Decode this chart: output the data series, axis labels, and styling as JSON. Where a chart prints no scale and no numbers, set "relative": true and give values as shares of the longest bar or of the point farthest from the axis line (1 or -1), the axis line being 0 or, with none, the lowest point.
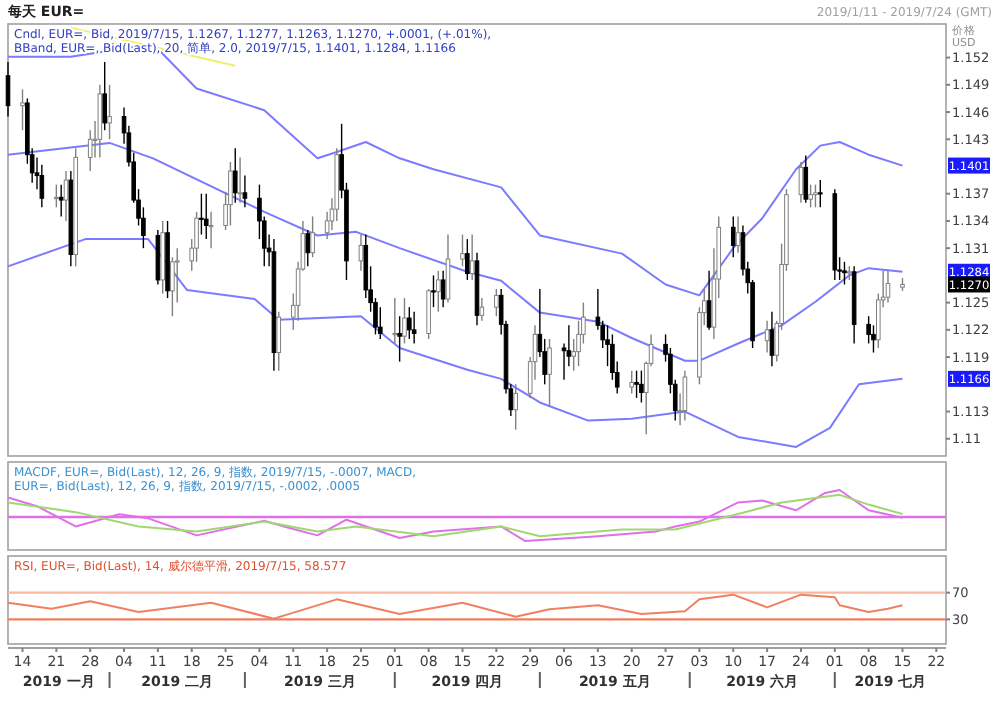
{
  "chart_data": [
    {
      "type": "candlestick",
      "title": "每天 EUR=",
      "subtitle": "Cndl, EUR=, Bid, 2019/7/15, 1.1267, 1.1277, 1.1263, 1.1270, +.0001, (+.01%), BBand, EUR=, Bid(Last), 20, 简单, 2.0, 2019/7/15, 1.1401, 1.1284, 1.1166",
      "ylabel": "价格 USD",
      "colors": [
        "#000000",
        "#ffffff",
        "#000000",
        "#000000",
        "#000000",
        "#000000",
        "#ffffff",
        "#000000",
        "#ffffff",
        "#000000",
        "#ffffff",
        "#ffffff",
        "#ffffff",
        "#ffffff",
        "#000000",
        "#ffffff",
        "#000000",
        "#000000",
        "#000000",
        "#000000",
        "#000000",
        "#000000",
        "#ffffff",
        "#000000",
        "#ffffff",
        "#ffffff",
        "#ffffff",
        "#ffffff",
        "#000000",
        "#000000",
        "#ffffff",
        "#ffffff",
        "#ffffff",
        "#000000",
        "#ffffff",
        "#000000",
        "#000000",
        "#000000",
        "#000000",
        "#000000",
        "#ffffff",
        "#ffffff",
        "#ffffff",
        "#ffffff",
        "#000000",
        "#ffffff",
        "#ffffff",
        "#ffffff",
        "#ffffff",
        "#000000",
        "#000000",
        "#ffffff",
        "#000000",
        "#000000",
        "#000000",
        "#000000",
        "#ffffff",
        "#000000",
        "#ffffff",
        "#000000",
        "#000000",
        "#ffffff",
        "#000000",
        "#ffffff",
        "#000000",
        "#ffffff",
        "#ffffff",
        "#000000",
        "#ffffff",
        "#000000",
        "#ffffff",
        "#ffffff",
        "#000000",
        "#000000",
        "#000000",
        "#ffffff",
        "#ffffff",
        "#ffffff",
        "#000000",
        "#000000",
        "#ffffff",
        "#000000",
        "#000000",
        "#ffffff",
        "#ffffff",
        "#ffffff",
        "#000000",
        "#000000",
        "#000000",
        "#000000",
        "#000000",
        "#ffffff",
        "#000000",
        "#000000",
        "#ffffff",
        "#ffffff",
        "#000000",
        "#000000",
        "#000000",
        "#ffffff",
        "#ffffff",
        "#ffffff",
        "#ffffff",
        "#000000",
        "#ffffff",
        "#ffffff",
        "#000000",
        "#ffffff",
        "#000000",
        "#000000",
        "#000000",
        "#ffffff",
        "#000000",
        "#ffffff",
        "#ffffff",
        "#ffffff",
        "#ffffff",
        "#000000",
        "#ffffff",
        "#ffffff",
        "#000000",
        "#000000",
        "#000000",
        "#000000",
        "#ffffff",
        "#000000",
        "#000000",
        "#000000",
        "#ffffff",
        "#ffffff",
        "#ffffff",
        "#ffffff"
      ],
      "x": [
        "2019-01-11",
        "2019-01-14",
        "2019-01-15",
        "2019-01-16",
        "2019-01-17",
        "2019-01-18",
        "2019-01-21",
        "2019-01-22",
        "2019-01-23",
        "2019-01-24",
        "2019-01-25",
        "2019-01-28",
        "2019-01-29",
        "2019-01-30",
        "2019-01-31",
        "2019-02-01",
        "2019-02-04",
        "2019-02-05",
        "2019-02-06",
        "2019-02-07",
        "2019-02-08",
        "2019-02-11",
        "2019-02-12",
        "2019-02-13",
        "2019-02-14",
        "2019-02-15",
        "2019-02-18",
        "2019-02-19",
        "2019-02-20",
        "2019-02-21",
        "2019-02-22",
        "2019-02-25",
        "2019-02-26",
        "2019-02-27",
        "2019-02-28",
        "2019-03-01",
        "2019-03-04",
        "2019-03-05",
        "2019-03-06",
        "2019-03-07",
        "2019-03-08",
        "2019-03-11",
        "2019-03-12",
        "2019-03-13",
        "2019-03-14",
        "2019-03-15",
        "2019-03-18",
        "2019-03-19",
        "2019-03-20",
        "2019-03-21",
        "2019-03-22",
        "2019-03-25",
        "2019-03-26",
        "2019-03-27",
        "2019-03-28",
        "2019-03-29",
        "2019-04-01",
        "2019-04-02",
        "2019-04-03",
        "2019-04-04",
        "2019-04-05",
        "2019-04-08",
        "2019-04-09",
        "2019-04-10",
        "2019-04-11",
        "2019-04-12",
        "2019-04-15",
        "2019-04-16",
        "2019-04-17",
        "2019-04-18",
        "2019-04-19",
        "2019-04-22",
        "2019-04-23",
        "2019-04-24",
        "2019-04-25",
        "2019-04-26",
        "2019-04-29",
        "2019-04-30",
        "2019-05-01",
        "2019-05-02",
        "2019-05-03",
        "2019-05-06",
        "2019-05-07",
        "2019-05-08",
        "2019-05-09",
        "2019-05-10",
        "2019-05-13",
        "2019-05-14",
        "2019-05-15",
        "2019-05-16",
        "2019-05-17",
        "2019-05-20",
        "2019-05-21",
        "2019-05-22",
        "2019-05-23",
        "2019-05-24",
        "2019-05-27",
        "2019-05-28",
        "2019-05-29",
        "2019-05-30",
        "2019-05-31",
        "2019-06-03",
        "2019-06-04",
        "2019-06-05",
        "2019-06-06",
        "2019-06-07",
        "2019-06-10",
        "2019-06-11",
        "2019-06-12",
        "2019-06-13",
        "2019-06-14",
        "2019-06-17",
        "2019-06-18",
        "2019-06-19",
        "2019-06-20",
        "2019-06-21",
        "2019-06-24",
        "2019-06-25",
        "2019-06-26",
        "2019-06-27",
        "2019-06-28",
        "2019-07-01",
        "2019-07-02",
        "2019-07-03",
        "2019-07-04",
        "2019-07-05",
        "2019-07-08",
        "2019-07-09",
        "2019-07-10",
        "2019-07-11",
        "2019-07-12",
        "2019-07-15"
      ],
      "ohlc": [
        [
          1.15,
          1.1515,
          1.1455,
          1.1467
        ],
        [
          1.1467,
          1.1485,
          1.144,
          1.147
        ],
        [
          1.147,
          1.1475,
          1.1403,
          1.1413
        ],
        [
          1.1413,
          1.142,
          1.1382,
          1.1393
        ],
        [
          1.1393,
          1.141,
          1.1375,
          1.139
        ],
        [
          1.139,
          1.1402,
          1.1355,
          1.1365
        ],
        [
          1.1365,
          1.138,
          1.1355,
          1.1366
        ],
        [
          1.1366,
          1.138,
          1.1345,
          1.1363
        ],
        [
          1.1363,
          1.1395,
          1.134,
          1.1385
        ],
        [
          1.1385,
          1.1395,
          1.129,
          1.1303
        ],
        [
          1.1303,
          1.142,
          1.129,
          1.141
        ],
        [
          1.141,
          1.144,
          1.1395,
          1.143
        ],
        [
          1.143,
          1.145,
          1.141,
          1.143
        ],
        [
          1.143,
          1.149,
          1.141,
          1.148
        ],
        [
          1.148,
          1.1515,
          1.144,
          1.1448
        ],
        [
          1.1448,
          1.149,
          1.143,
          1.1455
        ],
        [
          1.1455,
          1.1465,
          1.1425,
          1.1437
        ],
        [
          1.1437,
          1.1445,
          1.14,
          1.1405
        ],
        [
          1.1405,
          1.1415,
          1.136,
          1.1363
        ],
        [
          1.1363,
          1.1375,
          1.1335,
          1.1343
        ],
        [
          1.1343,
          1.1355,
          1.131,
          1.1324
        ],
        [
          1.1324,
          1.133,
          1.127,
          1.1275
        ],
        [
          1.1275,
          1.134,
          1.126,
          1.1327
        ],
        [
          1.1327,
          1.134,
          1.1255,
          1.1263
        ],
        [
          1.1263,
          1.13,
          1.1235,
          1.1295
        ],
        [
          1.1295,
          1.131,
          1.125,
          1.1296
        ],
        [
          1.1296,
          1.132,
          1.1285,
          1.131
        ],
        [
          1.131,
          1.135,
          1.1295,
          1.1343
        ],
        [
          1.1343,
          1.137,
          1.1325,
          1.1342
        ],
        [
          1.1342,
          1.137,
          1.132,
          1.1335
        ],
        [
          1.1335,
          1.135,
          1.131,
          1.1335
        ],
        [
          1.1335,
          1.1372,
          1.133,
          1.1358
        ],
        [
          1.1358,
          1.1405,
          1.1335,
          1.1395
        ],
        [
          1.1395,
          1.142,
          1.136,
          1.1371
        ],
        [
          1.1371,
          1.141,
          1.136,
          1.1371
        ],
        [
          1.1371,
          1.139,
          1.1355,
          1.1365
        ],
        [
          1.1365,
          1.138,
          1.132,
          1.134
        ],
        [
          1.134,
          1.1345,
          1.129,
          1.131
        ],
        [
          1.131,
          1.1325,
          1.129,
          1.1306
        ],
        [
          1.1306,
          1.132,
          1.1175,
          1.1195
        ],
        [
          1.1195,
          1.124,
          1.1175,
          1.1234
        ],
        [
          1.1234,
          1.126,
          1.122,
          1.1247
        ],
        [
          1.1247,
          1.1295,
          1.123,
          1.1287
        ],
        [
          1.1287,
          1.134,
          1.1285,
          1.1326
        ],
        [
          1.1326,
          1.133,
          1.129,
          1.1305
        ],
        [
          1.1305,
          1.1345,
          1.13,
          1.1327
        ],
        [
          1.1327,
          1.135,
          1.132,
          1.134
        ],
        [
          1.134,
          1.1365,
          1.133,
          1.1353
        ],
        [
          1.1353,
          1.142,
          1.134,
          1.1413
        ],
        [
          1.1413,
          1.1447,
          1.1365,
          1.1374
        ],
        [
          1.1374,
          1.1382,
          1.1275,
          1.1296
        ],
        [
          1.1296,
          1.1325,
          1.1285,
          1.1313
        ],
        [
          1.1313,
          1.1325,
          1.1255,
          1.1264
        ],
        [
          1.1264,
          1.129,
          1.124,
          1.125
        ],
        [
          1.125,
          1.1255,
          1.1215,
          1.1223
        ],
        [
          1.1223,
          1.1245,
          1.121,
          1.1216
        ],
        [
          1.1216,
          1.1255,
          1.1205,
          1.1216
        ],
        [
          1.1216,
          1.1235,
          1.1185,
          1.1213
        ],
        [
          1.1213,
          1.1255,
          1.1205,
          1.1233
        ],
        [
          1.1233,
          1.1245,
          1.121,
          1.122
        ],
        [
          1.122,
          1.124,
          1.1205,
          1.1216
        ],
        [
          1.1216,
          1.1265,
          1.121,
          1.1263
        ],
        [
          1.1263,
          1.128,
          1.1245,
          1.1262
        ],
        [
          1.1262,
          1.1285,
          1.124,
          1.1275
        ],
        [
          1.1275,
          1.1285,
          1.1245,
          1.1254
        ],
        [
          1.1254,
          1.1325,
          1.125,
          1.1298
        ],
        [
          1.1298,
          1.1325,
          1.129,
          1.1304
        ],
        [
          1.1304,
          1.132,
          1.1275,
          1.1282
        ],
        [
          1.1282,
          1.1325,
          1.1275,
          1.1296
        ],
        [
          1.1296,
          1.1305,
          1.1225,
          1.1236
        ],
        [
          1.1236,
          1.1255,
          1.123,
          1.1245
        ],
        [
          1.1245,
          1.1265,
          1.1235,
          1.1258
        ],
        [
          1.1258,
          1.1265,
          1.1215,
          1.1226
        ],
        [
          1.1226,
          1.123,
          1.115,
          1.1155
        ],
        [
          1.1155,
          1.116,
          1.1125,
          1.1132
        ],
        [
          1.1132,
          1.116,
          1.111,
          1.115
        ],
        [
          1.115,
          1.119,
          1.1145,
          1.1185
        ],
        [
          1.1185,
          1.1225,
          1.1165,
          1.1215
        ],
        [
          1.1215,
          1.1265,
          1.119,
          1.1196
        ],
        [
          1.1196,
          1.121,
          1.116,
          1.1171
        ],
        [
          1.1171,
          1.121,
          1.1135,
          1.12
        ],
        [
          1.12,
          1.1205,
          1.1165,
          1.1197
        ],
        [
          1.1197,
          1.1225,
          1.118,
          1.1191
        ],
        [
          1.1191,
          1.121,
          1.1175,
          1.1196
        ],
        [
          1.1196,
          1.123,
          1.118,
          1.1215
        ],
        [
          1.1215,
          1.125,
          1.1205,
          1.1234
        ],
        [
          1.1234,
          1.1265,
          1.122,
          1.1225
        ],
        [
          1.1225,
          1.123,
          1.12,
          1.1209
        ],
        [
          1.1209,
          1.1225,
          1.118,
          1.1204
        ],
        [
          1.1204,
          1.1215,
          1.1165,
          1.1173
        ],
        [
          1.1173,
          1.1185,
          1.115,
          1.1157
        ],
        [
          1.1157,
          1.1175,
          1.115,
          1.1162
        ],
        [
          1.1162,
          1.1175,
          1.1145,
          1.116
        ],
        [
          1.116,
          1.1175,
          1.114,
          1.1151
        ],
        [
          1.1151,
          1.1185,
          1.1105,
          1.1183
        ],
        [
          1.1183,
          1.1215,
          1.118,
          1.1204
        ],
        [
          1.1204,
          1.1215,
          1.1185,
          1.1193
        ],
        [
          1.1193,
          1.12,
          1.115,
          1.116
        ],
        [
          1.116,
          1.1165,
          1.112,
          1.1131
        ],
        [
          1.1131,
          1.115,
          1.1115,
          1.1131
        ],
        [
          1.1131,
          1.1175,
          1.112,
          1.1168
        ],
        [
          1.1168,
          1.1245,
          1.116,
          1.1239
        ],
        [
          1.1239,
          1.1265,
          1.1225,
          1.1252
        ],
        [
          1.1252,
          1.1285,
          1.122,
          1.1223
        ],
        [
          1.1223,
          1.131,
          1.121,
          1.1276
        ],
        [
          1.1276,
          1.1345,
          1.1255,
          1.1333
        ],
        [
          1.1333,
          1.1345,
          1.13,
          1.1313
        ],
        [
          1.1313,
          1.1345,
          1.1305,
          1.1327
        ],
        [
          1.1327,
          1.1335,
          1.128,
          1.1287
        ],
        [
          1.1287,
          1.1295,
          1.126,
          1.1272
        ],
        [
          1.1272,
          1.1275,
          1.12,
          1.1208
        ],
        [
          1.1208,
          1.123,
          1.1195,
          1.122
        ],
        [
          1.122,
          1.124,
          1.118,
          1.1192
        ],
        [
          1.1192,
          1.123,
          1.1185,
          1.1227
        ],
        [
          1.1227,
          1.1315,
          1.122,
          1.1292
        ],
        [
          1.1292,
          1.1375,
          1.1285,
          1.1369
        ],
        [
          1.1369,
          1.1405,
          1.136,
          1.1399
        ],
        [
          1.1399,
          1.1412,
          1.136,
          1.1364
        ],
        [
          1.1364,
          1.138,
          1.1355,
          1.1369
        ],
        [
          1.1369,
          1.138,
          1.1355,
          1.1371
        ],
        [
          1.1371,
          1.1385,
          1.1355,
          1.137
        ],
        [
          1.137,
          1.1375,
          1.1275,
          1.1286
        ],
        [
          1.1286,
          1.13,
          1.1275,
          1.1285
        ],
        [
          1.1285,
          1.1295,
          1.127,
          1.1283
        ],
        [
          1.1283,
          1.129,
          1.1275,
          1.1284
        ],
        [
          1.1284,
          1.129,
          1.1205,
          1.1226
        ],
        [
          1.1226,
          1.1235,
          1.1205,
          1.1215
        ],
        [
          1.1215,
          1.1225,
          1.1195,
          1.1209
        ],
        [
          1.1209,
          1.126,
          1.12,
          1.1253
        ],
        [
          1.1253,
          1.1285,
          1.1245,
          1.1256
        ],
        [
          1.1256,
          1.1285,
          1.125,
          1.1271
        ],
        [
          1.1267,
          1.1277,
          1.1263,
          1.127
        ]
      ],
      "series": [
        {
          "type": "line",
          "color": "#7b7bff",
          "x": [
            "2019-01-11",
            "2019-01-24",
            "2019-02-10",
            "2019-02-19",
            "2019-03-05",
            "2019-03-16",
            "2019-03-20",
            "2019-03-26",
            "2019-04-02",
            "2019-04-09",
            "2019-04-23",
            "2019-05-01",
            "2019-05-18",
            "2019-05-27",
            "2019-06-03",
            "2019-06-10",
            "2019-06-16",
            "2019-06-23",
            "2019-06-28",
            "2019-07-02",
            "2019-07-08",
            "2019-07-15"
          ],
          "values": [
            1.1521,
            1.1521,
            1.1535,
            1.1486,
            1.1462,
            1.1409,
            1.1416,
            1.1427,
            1.1409,
            1.1397,
            1.1377,
            1.1324,
            1.1304,
            1.127,
            1.1258,
            1.131,
            1.1343,
            1.1397,
            1.1423,
            1.1427,
            1.1413,
            1.1401
          ]
        },
        {
          "type": "line",
          "color": "#7b7bff",
          "x": [
            "2019-01-11",
            "2019-02-01",
            "2019-02-10",
            "2019-03-05",
            "2019-03-16",
            "2019-03-24",
            "2019-04-02",
            "2019-04-16",
            "2019-04-23",
            "2019-05-01",
            "2019-05-13",
            "2019-05-20",
            "2019-05-31",
            "2019-06-03",
            "2019-06-11",
            "2019-06-20",
            "2019-06-27",
            "2019-07-04",
            "2019-07-08",
            "2019-07-15"
          ],
          "values": [
            1.1413,
            1.1426,
            1.1409,
            1.135,
            1.1324,
            1.1328,
            1.131,
            1.1284,
            1.1274,
            1.1239,
            1.1229,
            1.1211,
            1.1186,
            1.1186,
            1.1205,
            1.1225,
            1.1251,
            1.128,
            1.1288,
            1.1284
          ]
        },
        {
          "type": "line",
          "color": "#7b7bff",
          "x": [
            "2019-01-11",
            "2019-01-27",
            "2019-02-09",
            "2019-02-17",
            "2019-03-03",
            "2019-03-08",
            "2019-03-25",
            "2019-04-02",
            "2019-04-16",
            "2019-04-23",
            "2019-05-01",
            "2019-05-11",
            "2019-05-20",
            "2019-05-31",
            "2019-06-11",
            "2019-06-23",
            "2019-06-30",
            "2019-07-06",
            "2019-07-15"
          ],
          "values": [
            1.129,
            1.132,
            1.132,
            1.1264,
            1.1254,
            1.1231,
            1.1235,
            1.12,
            1.1176,
            1.1166,
            1.114,
            1.112,
            1.1122,
            1.113,
            1.1102,
            1.1091,
            1.1112,
            1.116,
            1.1166
          ]
        },
        {
          "type": "line",
          "color": "#eeee70",
          "x": [
            "2019-01-24",
            "2019-02-27"
          ],
          "values": [
            1.1553,
            1.1511
          ]
        }
      ],
      "xlim": [
        "2019-01-11",
        "2019-07-24"
      ],
      "ylim": [
        1.1081,
        1.1557
      ],
      "yticks": [
        1.11,
        1.113,
        1.119,
        1.122,
        1.125,
        1.131,
        1.134,
        1.137,
        1.143,
        1.146,
        1.149,
        1.152
      ],
      "tick_labels": "y",
      "annotations": [
        "2019/1/11 - 2019/7/24 (GMT)",
        {
          "text": "1.1401",
          "y": 1.1401
        },
        {
          "text": "1.1284",
          "y": 1.1284
        },
        {
          "text": "1.1270",
          "y": 1.127
        },
        {
          "text": "1.1166",
          "y": 1.1166
        }
      ]
    },
    {
      "type": "line",
      "title": "MACDF, EUR=, Bid(Last), 12, 26, 9, 指数, 2019/7/15, -.0007, MACD, EUR=, Bid(Last), 12, 26, 9, 指数, 2019/7/15, -.0002, .0005",
      "relative": true,
      "tick_labels": false,
      "xlim": [
        "2019-01-11",
        "2019-07-24"
      ],
      "ref_lines": [
        {
          "axis": "y",
          "value": 0,
          "color": "#e070e8"
        }
      ],
      "series": [
        {
          "color": "#e070e8",
          "x": [
            "2019-01-11",
            "2019-01-17",
            "2019-01-25",
            "2019-02-03",
            "2019-02-09",
            "2019-02-19",
            "2019-03-05",
            "2019-03-10",
            "2019-03-16",
            "2019-03-22",
            "2019-04-02",
            "2019-04-09",
            "2019-04-23",
            "2019-04-28",
            "2019-05-13",
            "2019-05-25",
            "2019-05-29",
            "2019-06-03",
            "2019-06-11",
            "2019-06-16",
            "2019-06-23",
            "2019-06-29",
            "2019-07-02",
            "2019-07-08",
            "2019-07-15"
          ],
          "values": [
            0.72,
            0.4,
            -0.35,
            0.1,
            -0.05,
            -0.68,
            -0.14,
            -0.4,
            -0.68,
            -0.1,
            -0.78,
            -0.54,
            -0.35,
            -0.89,
            -0.71,
            -0.54,
            -0.35,
            -0.17,
            0.54,
            0.61,
            0.25,
            0.89,
            1,
            0.25,
            -0.03
          ]
        },
        {
          "color": "#a0d870",
          "x": [
            "2019-01-11",
            "2019-01-25",
            "2019-02-07",
            "2019-02-19",
            "2019-03-05",
            "2019-03-16",
            "2019-03-24",
            "2019-04-09",
            "2019-04-23",
            "2019-05-01",
            "2019-05-18",
            "2019-05-29",
            "2019-06-11",
            "2019-06-20",
            "2019-07-02",
            "2019-07-08",
            "2019-07-15"
          ],
          "values": [
            0.54,
            0.18,
            -0.35,
            -0.54,
            -0.17,
            -0.54,
            -0.35,
            -0.71,
            -0.35,
            -0.71,
            -0.46,
            -0.46,
            0.11,
            0.54,
            0.82,
            0.46,
            0.11
          ]
        }
      ]
    },
    {
      "type": "line",
      "title": "RSI, EUR=, Bid(Last), 14, 威尔德平滑, 2019/7/15, 58.577",
      "xlim": [
        "2019-01-11",
        "2019-07-24"
      ],
      "ylim": [
        -7,
        125
      ],
      "yticks": [
        30,
        70
      ],
      "ref_lines": [
        {
          "axis": "y",
          "value": 70,
          "color": "#f8b8a0"
        },
        {
          "axis": "y",
          "value": 30,
          "color": "#f08060"
        }
      ],
      "series": [
        {
          "color": "#f08060",
          "x": [
            "2019-01-11",
            "2019-01-20",
            "2019-01-28",
            "2019-02-07",
            "2019-02-22",
            "2019-03-07",
            "2019-03-20",
            "2019-04-02",
            "2019-04-15",
            "2019-04-26",
            "2019-05-03",
            "2019-05-13",
            "2019-05-22",
            "2019-05-31",
            "2019-06-03",
            "2019-06-10",
            "2019-06-17",
            "2019-06-24",
            "2019-07-01",
            "2019-07-02",
            "2019-07-08",
            "2019-07-12",
            "2019-07-15"
          ],
          "values": [
            55,
            46,
            57,
            41,
            55,
            31,
            60,
            38,
            55,
            34,
            45,
            51,
            38,
            42,
            60,
            67,
            48,
            67,
            63,
            51,
            41,
            46,
            51
          ]
        }
      ],
      "xticks": [
        {
          "value": "2019-01-14",
          "label": "14"
        },
        {
          "value": "2019-01-21",
          "label": "21"
        },
        {
          "value": "2019-01-28",
          "label": "28"
        },
        {
          "value": "2019-02-04",
          "label": "04"
        },
        {
          "value": "2019-02-11",
          "label": "11"
        },
        {
          "value": "2019-02-18",
          "label": "18"
        },
        {
          "value": "2019-02-25",
          "label": "25"
        },
        {
          "value": "2019-03-04",
          "label": "04"
        },
        {
          "value": "2019-03-11",
          "label": "11"
        },
        {
          "value": "2019-03-18",
          "label": "18"
        },
        {
          "value": "2019-03-25",
          "label": "25"
        },
        {
          "value": "2019-04-01",
          "label": "01"
        },
        {
          "value": "2019-04-08",
          "label": "08"
        },
        {
          "value": "2019-04-15",
          "label": "15"
        },
        {
          "value": "2019-04-22",
          "label": "22"
        },
        {
          "value": "2019-04-29",
          "label": "29"
        },
        {
          "value": "2019-05-06",
          "label": "06"
        },
        {
          "value": "2019-05-13",
          "label": "13"
        },
        {
          "value": "2019-05-20",
          "label": "20"
        },
        {
          "value": "2019-05-27",
          "label": "27"
        },
        {
          "value": "2019-06-03",
          "label": "03"
        },
        {
          "value": "2019-06-10",
          "label": "10"
        },
        {
          "value": "2019-06-17",
          "label": "17"
        },
        {
          "value": "2019-06-24",
          "label": "24"
        },
        {
          "value": "2019-07-01",
          "label": "01"
        },
        {
          "value": "2019-07-08",
          "label": "08"
        },
        {
          "value": "2019-07-15",
          "label": "15"
        },
        {
          "value": "2019-07-22",
          "label": "22"
        }
      ],
      "annotations": [
        "2019 一月",
        "2019 二月",
        "2019 三月",
        "2019 四月",
        "2019 五月",
        "2019 六月",
        "2019 七月"
      ]
    }
  ]
}
